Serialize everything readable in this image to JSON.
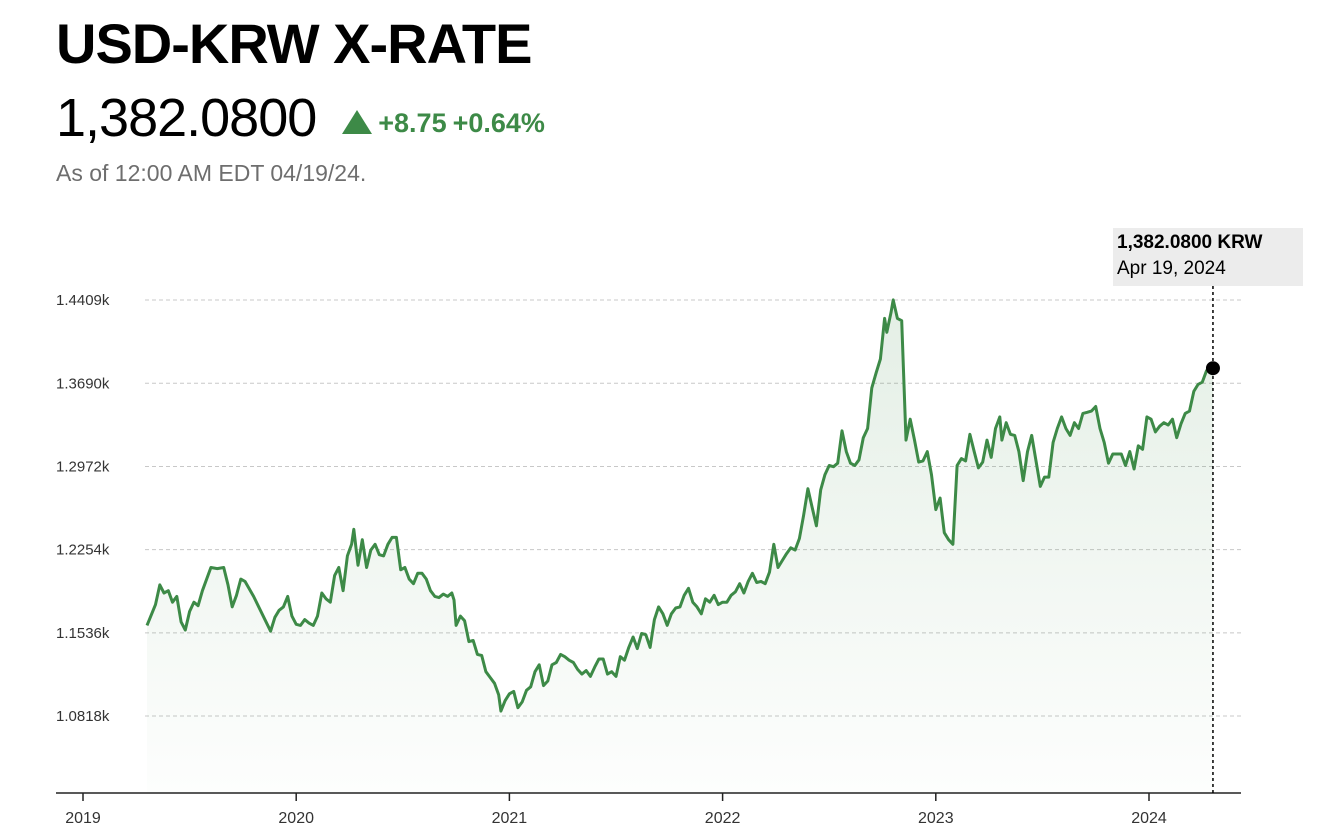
{
  "header": {
    "title": "USD-KRW X-RATE",
    "price": "1,382.0800",
    "change": "+8.75",
    "change_pct": "+0.64%",
    "as_of": "As of 12:00 AM EDT 04/19/24.",
    "up_color": "#3d8a47"
  },
  "tooltip": {
    "value": "1,382.0800 KRW",
    "date": "Apr 19, 2024"
  },
  "chart_data": {
    "type": "area",
    "ylim": [
      1.0,
      1.45
    ],
    "yticks": [
      1.0818,
      1.1536,
      1.2254,
      1.2972,
      1.369,
      1.4409
    ],
    "ytick_labels": [
      "1.0818k",
      "1.1536k",
      "1.2254k",
      "1.2972k",
      "1.3690k",
      "1.4409k"
    ],
    "xlim": [
      2019.0,
      2024.45
    ],
    "xticks": [
      2019,
      2020,
      2021,
      2022,
      2023,
      2024
    ],
    "xtick_labels": [
      "2019",
      "2020",
      "2021",
      "2022",
      "2023",
      "2024"
    ],
    "grid": "horizontal dashed",
    "line_color": "#3d8a47",
    "marker_point": {
      "x": 2024.3,
      "y": 1.382
    },
    "points": [
      [
        2019.3,
        1.16
      ],
      [
        2019.34,
        1.178
      ],
      [
        2019.36,
        1.195
      ],
      [
        2019.38,
        1.188
      ],
      [
        2019.4,
        1.19
      ],
      [
        2019.42,
        1.18
      ],
      [
        2019.44,
        1.185
      ],
      [
        2019.46,
        1.163
      ],
      [
        2019.48,
        1.156
      ],
      [
        2019.5,
        1.172
      ],
      [
        2019.52,
        1.18
      ],
      [
        2019.54,
        1.177
      ],
      [
        2019.56,
        1.19
      ],
      [
        2019.6,
        1.21
      ],
      [
        2019.63,
        1.209
      ],
      [
        2019.66,
        1.21
      ],
      [
        2019.68,
        1.195
      ],
      [
        2019.7,
        1.176
      ],
      [
        2019.72,
        1.186
      ],
      [
        2019.74,
        1.2
      ],
      [
        2019.76,
        1.198
      ],
      [
        2019.8,
        1.185
      ],
      [
        2019.84,
        1.17
      ],
      [
        2019.88,
        1.155
      ],
      [
        2019.9,
        1.167
      ],
      [
        2019.92,
        1.173
      ],
      [
        2019.94,
        1.176
      ],
      [
        2019.96,
        1.185
      ],
      [
        2019.98,
        1.168
      ],
      [
        2020.0,
        1.161
      ],
      [
        2020.02,
        1.16
      ],
      [
        2020.04,
        1.165
      ],
      [
        2020.06,
        1.162
      ],
      [
        2020.08,
        1.16
      ],
      [
        2020.1,
        1.168
      ],
      [
        2020.12,
        1.188
      ],
      [
        2020.14,
        1.183
      ],
      [
        2020.16,
        1.18
      ],
      [
        2020.18,
        1.203
      ],
      [
        2020.2,
        1.21
      ],
      [
        2020.22,
        1.19
      ],
      [
        2020.24,
        1.22
      ],
      [
        2020.26,
        1.23
      ],
      [
        2020.27,
        1.243
      ],
      [
        2020.29,
        1.212
      ],
      [
        2020.31,
        1.234
      ],
      [
        2020.33,
        1.21
      ],
      [
        2020.35,
        1.225
      ],
      [
        2020.37,
        1.23
      ],
      [
        2020.39,
        1.221
      ],
      [
        2020.41,
        1.22
      ],
      [
        2020.43,
        1.23
      ],
      [
        2020.45,
        1.236
      ],
      [
        2020.47,
        1.236
      ],
      [
        2020.49,
        1.208
      ],
      [
        2020.51,
        1.21
      ],
      [
        2020.53,
        1.2
      ],
      [
        2020.55,
        1.196
      ],
      [
        2020.57,
        1.205
      ],
      [
        2020.59,
        1.205
      ],
      [
        2020.61,
        1.2
      ],
      [
        2020.63,
        1.19
      ],
      [
        2020.65,
        1.185
      ],
      [
        2020.67,
        1.184
      ],
      [
        2020.69,
        1.187
      ],
      [
        2020.71,
        1.185
      ],
      [
        2020.73,
        1.188
      ],
      [
        2020.74,
        1.182
      ],
      [
        2020.75,
        1.16
      ],
      [
        2020.77,
        1.168
      ],
      [
        2020.79,
        1.164
      ],
      [
        2020.81,
        1.146
      ],
      [
        2020.83,
        1.147
      ],
      [
        2020.85,
        1.135
      ],
      [
        2020.87,
        1.134
      ],
      [
        2020.89,
        1.12
      ],
      [
        2020.91,
        1.115
      ],
      [
        2020.93,
        1.11
      ],
      [
        2020.95,
        1.1
      ],
      [
        2020.96,
        1.086
      ],
      [
        2020.98,
        1.095
      ],
      [
        2021.0,
        1.101
      ],
      [
        2021.02,
        1.103
      ],
      [
        2021.04,
        1.089
      ],
      [
        2021.06,
        1.094
      ],
      [
        2021.08,
        1.104
      ],
      [
        2021.1,
        1.107
      ],
      [
        2021.12,
        1.12
      ],
      [
        2021.14,
        1.126
      ],
      [
        2021.16,
        1.108
      ],
      [
        2021.18,
        1.112
      ],
      [
        2021.2,
        1.126
      ],
      [
        2021.22,
        1.128
      ],
      [
        2021.24,
        1.135
      ],
      [
        2021.26,
        1.133
      ],
      [
        2021.28,
        1.13
      ],
      [
        2021.3,
        1.128
      ],
      [
        2021.32,
        1.122
      ],
      [
        2021.34,
        1.118
      ],
      [
        2021.36,
        1.121
      ],
      [
        2021.38,
        1.116
      ],
      [
        2021.4,
        1.124
      ],
      [
        2021.42,
        1.131
      ],
      [
        2021.44,
        1.131
      ],
      [
        2021.46,
        1.118
      ],
      [
        2021.48,
        1.12
      ],
      [
        2021.5,
        1.116
      ],
      [
        2021.52,
        1.133
      ],
      [
        2021.54,
        1.13
      ],
      [
        2021.56,
        1.141
      ],
      [
        2021.58,
        1.15
      ],
      [
        2021.6,
        1.14
      ],
      [
        2021.62,
        1.153
      ],
      [
        2021.64,
        1.152
      ],
      [
        2021.66,
        1.141
      ],
      [
        2021.68,
        1.165
      ],
      [
        2021.7,
        1.176
      ],
      [
        2021.72,
        1.17
      ],
      [
        2021.74,
        1.16
      ],
      [
        2021.76,
        1.17
      ],
      [
        2021.78,
        1.175
      ],
      [
        2021.8,
        1.176
      ],
      [
        2021.82,
        1.186
      ],
      [
        2021.84,
        1.192
      ],
      [
        2021.86,
        1.18
      ],
      [
        2021.88,
        1.176
      ],
      [
        2021.9,
        1.17
      ],
      [
        2021.92,
        1.183
      ],
      [
        2021.94,
        1.18
      ],
      [
        2021.96,
        1.186
      ],
      [
        2021.98,
        1.178
      ],
      [
        2022.0,
        1.18
      ],
      [
        2022.02,
        1.18
      ],
      [
        2022.04,
        1.186
      ],
      [
        2022.06,
        1.189
      ],
      [
        2022.08,
        1.196
      ],
      [
        2022.1,
        1.188
      ],
      [
        2022.12,
        1.198
      ],
      [
        2022.14,
        1.205
      ],
      [
        2022.16,
        1.197
      ],
      [
        2022.18,
        1.198
      ],
      [
        2022.2,
        1.196
      ],
      [
        2022.22,
        1.206
      ],
      [
        2022.24,
        1.23
      ],
      [
        2022.26,
        1.21
      ],
      [
        2022.28,
        1.216
      ],
      [
        2022.3,
        1.222
      ],
      [
        2022.32,
        1.227
      ],
      [
        2022.34,
        1.225
      ],
      [
        2022.36,
        1.235
      ],
      [
        2022.38,
        1.255
      ],
      [
        2022.4,
        1.278
      ],
      [
        2022.42,
        1.262
      ],
      [
        2022.44,
        1.246
      ],
      [
        2022.46,
        1.277
      ],
      [
        2022.48,
        1.29
      ],
      [
        2022.5,
        1.298
      ],
      [
        2022.52,
        1.297
      ],
      [
        2022.54,
        1.3
      ],
      [
        2022.56,
        1.328
      ],
      [
        2022.58,
        1.31
      ],
      [
        2022.6,
        1.3
      ],
      [
        2022.62,
        1.298
      ],
      [
        2022.64,
        1.303
      ],
      [
        2022.66,
        1.322
      ],
      [
        2022.68,
        1.33
      ],
      [
        2022.7,
        1.365
      ],
      [
        2022.72,
        1.378
      ],
      [
        2022.74,
        1.39
      ],
      [
        2022.76,
        1.425
      ],
      [
        2022.77,
        1.413
      ],
      [
        2022.79,
        1.43
      ],
      [
        2022.8,
        1.441
      ],
      [
        2022.82,
        1.425
      ],
      [
        2022.84,
        1.423
      ],
      [
        2022.86,
        1.32
      ],
      [
        2022.88,
        1.338
      ],
      [
        2022.9,
        1.32
      ],
      [
        2022.92,
        1.301
      ],
      [
        2022.94,
        1.302
      ],
      [
        2022.96,
        1.31
      ],
      [
        2022.98,
        1.29
      ],
      [
        2023.0,
        1.26
      ],
      [
        2023.02,
        1.27
      ],
      [
        2023.04,
        1.24
      ],
      [
        2023.06,
        1.234
      ],
      [
        2023.08,
        1.23
      ],
      [
        2023.1,
        1.298
      ],
      [
        2023.12,
        1.304
      ],
      [
        2023.14,
        1.302
      ],
      [
        2023.16,
        1.325
      ],
      [
        2023.18,
        1.31
      ],
      [
        2023.2,
        1.296
      ],
      [
        2023.22,
        1.301
      ],
      [
        2023.24,
        1.32
      ],
      [
        2023.26,
        1.305
      ],
      [
        2023.28,
        1.33
      ],
      [
        2023.3,
        1.34
      ],
      [
        2023.31,
        1.32
      ],
      [
        2023.33,
        1.335
      ],
      [
        2023.35,
        1.325
      ],
      [
        2023.37,
        1.324
      ],
      [
        2023.39,
        1.31
      ],
      [
        2023.41,
        1.285
      ],
      [
        2023.43,
        1.31
      ],
      [
        2023.45,
        1.324
      ],
      [
        2023.47,
        1.302
      ],
      [
        2023.49,
        1.28
      ],
      [
        2023.51,
        1.288
      ],
      [
        2023.53,
        1.288
      ],
      [
        2023.55,
        1.318
      ],
      [
        2023.57,
        1.33
      ],
      [
        2023.59,
        1.34
      ],
      [
        2023.61,
        1.33
      ],
      [
        2023.63,
        1.324
      ],
      [
        2023.65,
        1.335
      ],
      [
        2023.67,
        1.33
      ],
      [
        2023.69,
        1.343
      ],
      [
        2023.71,
        1.344
      ],
      [
        2023.73,
        1.345
      ],
      [
        2023.75,
        1.349
      ],
      [
        2023.77,
        1.33
      ],
      [
        2023.79,
        1.318
      ],
      [
        2023.81,
        1.3
      ],
      [
        2023.83,
        1.308
      ],
      [
        2023.85,
        1.308
      ],
      [
        2023.87,
        1.308
      ],
      [
        2023.89,
        1.298
      ],
      [
        2023.91,
        1.31
      ],
      [
        2023.93,
        1.295
      ],
      [
        2023.95,
        1.315
      ],
      [
        2023.97,
        1.312
      ],
      [
        2023.99,
        1.34
      ],
      [
        2024.01,
        1.338
      ],
      [
        2024.03,
        1.327
      ],
      [
        2024.05,
        1.332
      ],
      [
        2024.07,
        1.335
      ],
      [
        2024.09,
        1.333
      ],
      [
        2024.11,
        1.338
      ],
      [
        2024.13,
        1.322
      ],
      [
        2024.15,
        1.334
      ],
      [
        2024.17,
        1.343
      ],
      [
        2024.19,
        1.345
      ],
      [
        2024.21,
        1.362
      ],
      [
        2024.23,
        1.368
      ],
      [
        2024.25,
        1.37
      ],
      [
        2024.27,
        1.38
      ],
      [
        2024.3,
        1.382
      ]
    ]
  }
}
